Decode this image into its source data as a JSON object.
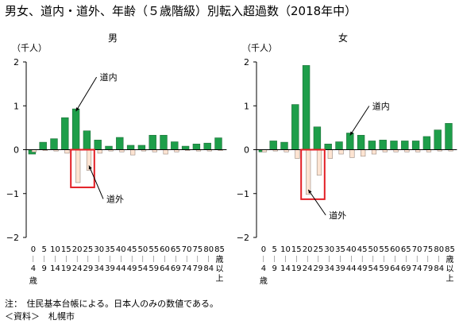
{
  "title": "男女、道内・道外、年齢（５歳階級）別転入超過数（2018年中）",
  "notes": {
    "note1": "注：　住民基本台帳による。日本人のみの数値である。",
    "note2": "＜資料＞　札幌市"
  },
  "chart_data": [
    {
      "type": "bar",
      "title": "男",
      "ylabel": "（千人）",
      "ylim": [
        -2,
        2
      ],
      "yticks": [
        2,
        1,
        0,
        -1,
        -2
      ],
      "grid": false,
      "categories": [
        "0～4歳",
        "5～9",
        "10～14",
        "15～19",
        "20～24",
        "25～29",
        "30～34",
        "35～39",
        "40～44",
        "45～49",
        "50～54",
        "55～59",
        "60～64",
        "65～69",
        "70～74",
        "75～79",
        "80～84",
        "85歳以上"
      ],
      "category_labels": [
        {
          "top": "0",
          "bottom": "4",
          "extra": "歳"
        },
        {
          "top": "5",
          "bottom": "9"
        },
        {
          "top": "10",
          "bottom": "14"
        },
        {
          "top": "15",
          "bottom": "19"
        },
        {
          "top": "20",
          "bottom": "24"
        },
        {
          "top": "25",
          "bottom": "29"
        },
        {
          "top": "30",
          "bottom": "34"
        },
        {
          "top": "35",
          "bottom": "39"
        },
        {
          "top": "40",
          "bottom": "44"
        },
        {
          "top": "45",
          "bottom": "49"
        },
        {
          "top": "50",
          "bottom": "54"
        },
        {
          "top": "55",
          "bottom": "59"
        },
        {
          "top": "60",
          "bottom": "64"
        },
        {
          "top": "65",
          "bottom": "69"
        },
        {
          "top": "70",
          "bottom": "74"
        },
        {
          "top": "75",
          "bottom": "79"
        },
        {
          "top": "80",
          "bottom": "84"
        },
        {
          "top": "85",
          "bottom": "歳以上"
        }
      ],
      "series": [
        {
          "name": "道内",
          "color": "#1e9e4a",
          "values": [
            -0.1,
            0.17,
            0.25,
            0.73,
            0.93,
            0.43,
            0.22,
            0.08,
            0.28,
            0.1,
            0.1,
            0.33,
            0.33,
            0.18,
            0.08,
            0.13,
            0.15,
            0.27
          ]
        },
        {
          "name": "道外",
          "color": "#fde4d2",
          "values": [
            -0.05,
            -0.02,
            -0.03,
            -0.08,
            -0.75,
            -0.47,
            -0.08,
            -0.03,
            -0.05,
            -0.12,
            -0.03,
            -0.05,
            -0.1,
            -0.05,
            -0.02,
            -0.03,
            -0.03,
            -0.02
          ]
        }
      ],
      "annotations": [
        {
          "label": "道内",
          "series": "道内"
        },
        {
          "label": "道外",
          "series": "道外"
        }
      ]
    },
    {
      "type": "bar",
      "title": "女",
      "ylabel": "（千人）",
      "ylim": [
        -2,
        2
      ],
      "yticks": [
        2,
        1,
        0,
        -1,
        -2
      ],
      "grid": false,
      "categories": [
        "0～4歳",
        "5～9",
        "10～14",
        "15～19",
        "20～24",
        "25～29",
        "30～34",
        "35～39",
        "40～44",
        "45～49",
        "50～54",
        "55～59",
        "60～64",
        "65～69",
        "70～74",
        "75～79",
        "80～84",
        "85歳以上"
      ],
      "category_labels": [
        {
          "top": "0",
          "bottom": "4",
          "extra": "歳"
        },
        {
          "top": "5",
          "bottom": "9"
        },
        {
          "top": "10",
          "bottom": "14"
        },
        {
          "top": "15",
          "bottom": "19"
        },
        {
          "top": "20",
          "bottom": "24"
        },
        {
          "top": "25",
          "bottom": "29"
        },
        {
          "top": "30",
          "bottom": "34"
        },
        {
          "top": "35",
          "bottom": "39"
        },
        {
          "top": "40",
          "bottom": "44"
        },
        {
          "top": "45",
          "bottom": "49"
        },
        {
          "top": "50",
          "bottom": "54"
        },
        {
          "top": "55",
          "bottom": "59"
        },
        {
          "top": "60",
          "bottom": "64"
        },
        {
          "top": "65",
          "bottom": "69"
        },
        {
          "top": "70",
          "bottom": "74"
        },
        {
          "top": "75",
          "bottom": "79"
        },
        {
          "top": "80",
          "bottom": "84"
        },
        {
          "top": "85",
          "bottom": "歳以上"
        }
      ],
      "series": [
        {
          "name": "道内",
          "color": "#1e9e4a",
          "values": [
            -0.05,
            0.2,
            0.17,
            1.03,
            1.92,
            0.52,
            0.13,
            0.18,
            0.38,
            0.33,
            0.2,
            0.22,
            0.2,
            0.2,
            0.2,
            0.3,
            0.45,
            0.6
          ]
        },
        {
          "name": "道外",
          "color": "#fde4d2",
          "values": [
            -0.05,
            -0.03,
            -0.05,
            -0.2,
            -1.02,
            -0.58,
            -0.2,
            -0.1,
            -0.18,
            -0.15,
            -0.1,
            -0.05,
            -0.05,
            -0.05,
            -0.05,
            -0.05,
            -0.03,
            -0.03
          ]
        }
      ],
      "annotations": [
        {
          "label": "道内",
          "series": "道内"
        },
        {
          "label": "道外",
          "series": "道外"
        }
      ]
    }
  ]
}
